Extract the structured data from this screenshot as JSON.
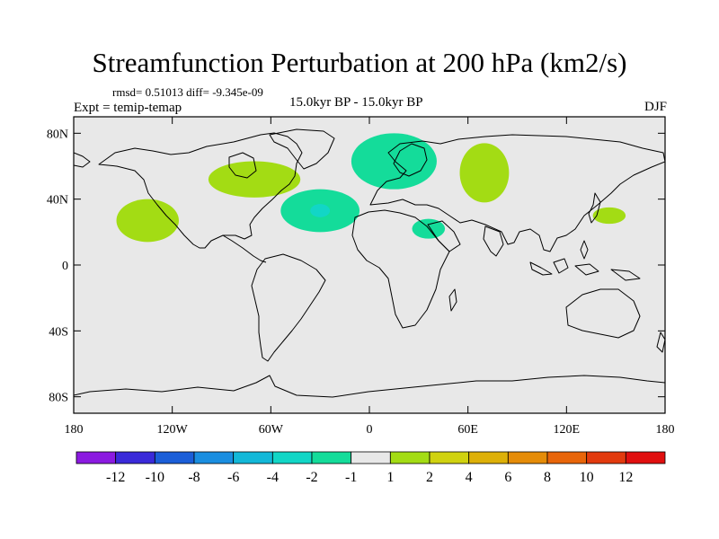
{
  "title": "Streamfunction Perturbation at 200 hPa (km2/s)",
  "stats": "rmsd= 0.51013 diff= -9.345e-09",
  "experiment": "Expt = temip-temap",
  "period": "15.0kyr BP - 15.0kyr BP",
  "season": "DJF",
  "map": {
    "background": "#e8e8e8",
    "lat_ticks": [
      "80N",
      "40N",
      "0",
      "40S",
      "80S"
    ],
    "lat_values": [
      80,
      40,
      0,
      -40,
      -80
    ],
    "lon_ticks": [
      "180",
      "120W",
      "60W",
      "0",
      "60E",
      "120E",
      "180"
    ],
    "lon_values": [
      -180,
      -120,
      -60,
      0,
      60,
      120,
      180
    ]
  },
  "anomalies": [
    {
      "name": "north-pacific",
      "level": 1,
      "lon": -135,
      "lat": 27,
      "rlon": 19,
      "rlat": 13
    },
    {
      "name": "north-america",
      "level": 1,
      "lon": -70,
      "lat": 52,
      "rlon": 28,
      "rlat": 11
    },
    {
      "name": "north-atlantic",
      "level": -1,
      "lon": -30,
      "lat": 33,
      "rlon": 24,
      "rlat": 13
    },
    {
      "name": "north-atlantic-core",
      "level": -2,
      "lon": -30,
      "lat": 33,
      "rlon": 6,
      "rlat": 4
    },
    {
      "name": "scandinavia",
      "level": -1,
      "lon": 15,
      "lat": 63,
      "rlon": 26,
      "rlat": 17
    },
    {
      "name": "west-siberia",
      "level": 1,
      "lon": 70,
      "lat": 56,
      "rlon": 15,
      "rlat": 18
    },
    {
      "name": "northeast-africa",
      "level": -1,
      "lon": 36,
      "lat": 22,
      "rlon": 10,
      "rlat": 6
    },
    {
      "name": "west-pacific",
      "level": 1,
      "lon": 146,
      "lat": 30,
      "rlon": 10,
      "rlat": 5
    }
  ],
  "colorbar": {
    "colors": [
      "#8b1ae0",
      "#3a2ad9",
      "#1b5ed8",
      "#1a8ee0",
      "#13b8d8",
      "#12d6c6",
      "#14dc9a",
      "#e8e8e8",
      "#a3dc14",
      "#d0d210",
      "#ddb008",
      "#e58c08",
      "#e8650a",
      "#e23a0e",
      "#e00f0f"
    ],
    "labels": [
      "-12",
      "-10",
      "-8",
      "-6",
      "-4",
      "-2",
      "-1",
      "1",
      "2",
      "4",
      "6",
      "8",
      "10",
      "12"
    ]
  }
}
